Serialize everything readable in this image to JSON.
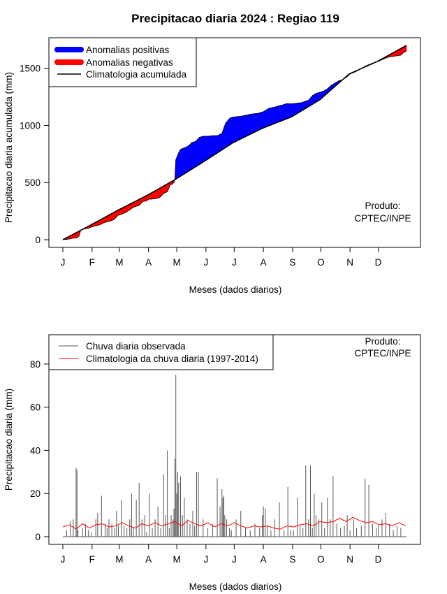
{
  "figure": {
    "title": "Precipitacao diaria 2024 : Regiao 119",
    "credit_line1": "Produto:",
    "credit_line2": "CPTEC/INPE"
  },
  "chart_data": [
    {
      "type": "area",
      "title": "Precipitacao diaria 2024 : Regiao 119",
      "xlabel": "Meses (dados diarios)",
      "ylabel": "Precipitacao diaria acumulada (mm)",
      "x_unit": "day of year",
      "xlim": [
        1,
        366
      ],
      "ylim": [
        0,
        1700
      ],
      "y_ticks": [
        0,
        500,
        1000,
        1500
      ],
      "month_tick_labels": [
        "J",
        "F",
        "M",
        "A",
        "M",
        "J",
        "J",
        "A",
        "S",
        "O",
        "N",
        "D"
      ],
      "month_tick_days": [
        1,
        32,
        61,
        92,
        122,
        153,
        183,
        214,
        245,
        275,
        306,
        336
      ],
      "grid": false,
      "legend_position": "top-left",
      "legend": [
        "Anomalias positivas",
        "Anomalias negativas",
        "Climatologia acumulada"
      ],
      "colors": {
        "positive": "#0000ff",
        "negative": "#ff0000",
        "climatology": "#000000"
      },
      "climatology": {
        "x": [
          1,
          31,
          60,
          91,
          121,
          152,
          182,
          213,
          244,
          274,
          305,
          335,
          366
        ],
        "y": [
          0,
          130,
          260,
          390,
          530,
          690,
          850,
          975,
          1075,
          1225,
          1450,
          1560,
          1700
        ]
      },
      "observed": {
        "x": [
          1,
          8,
          12,
          15,
          18,
          20,
          24,
          28,
          31,
          35,
          40,
          45,
          50,
          55,
          58,
          60,
          64,
          68,
          72,
          75,
          78,
          82,
          86,
          90,
          92,
          95,
          100,
          104,
          108,
          112,
          115,
          117,
          119,
          120,
          121,
          124,
          126,
          129,
          132,
          135,
          138,
          142,
          146,
          150,
          155,
          160,
          165,
          170,
          173,
          174,
          176,
          177,
          178,
          180,
          184,
          190,
          196,
          202,
          208,
          214,
          220,
          226,
          230,
          235,
          238,
          242,
          246,
          250,
          255,
          258,
          262,
          266,
          270,
          274,
          278,
          282,
          286,
          290,
          294,
          298,
          302,
          306,
          312,
          318,
          324,
          330,
          336,
          340,
          344,
          348,
          352,
          356,
          360,
          363,
          366
        ],
        "y": [
          0,
          6,
          14,
          14,
          30,
          82,
          95,
          100,
          110,
          120,
          130,
          150,
          160,
          175,
          200,
          215,
          225,
          240,
          260,
          280,
          290,
          300,
          335,
          340,
          355,
          355,
          360,
          370,
          405,
          420,
          480,
          485,
          500,
          530,
          700,
          760,
          790,
          800,
          810,
          825,
          850,
          860,
          895,
          905,
          905,
          910,
          910,
          930,
          1000,
          1020,
          1040,
          1050,
          1060,
          1070,
          1075,
          1080,
          1090,
          1100,
          1105,
          1120,
          1150,
          1160,
          1170,
          1180,
          1190,
          1190,
          1190,
          1195,
          1200,
          1210,
          1220,
          1260,
          1280,
          1290,
          1300,
          1320,
          1350,
          1370,
          1390,
          1400,
          1420,
          1450,
          1470,
          1500,
          1525,
          1545,
          1560,
          1575,
          1590,
          1600,
          1605,
          1610,
          1615,
          1640,
          1650
        ]
      }
    },
    {
      "type": "line",
      "xlabel": "Meses (dados diarios)",
      "ylabel": "Precipitacao diaria (mm)",
      "x_unit": "day of year",
      "xlim": [
        1,
        366
      ],
      "ylim": [
        0,
        90
      ],
      "y_ticks": [
        0,
        20,
        40,
        60,
        80
      ],
      "month_tick_labels": [
        "J",
        "F",
        "M",
        "A",
        "M",
        "J",
        "J",
        "A",
        "S",
        "O",
        "N",
        "D"
      ],
      "month_tick_days": [
        1,
        32,
        61,
        92,
        122,
        153,
        183,
        214,
        245,
        275,
        306,
        336
      ],
      "grid": false,
      "legend_position": "top-left",
      "colors": {
        "observed": "#555555",
        "climatology": "#ff0000"
      },
      "series": [
        {
          "name": "Chuva diaria observada",
          "style": "vertical-bars",
          "x": [
            5,
            9,
            12,
            15,
            16,
            17,
            22,
            25,
            28,
            31,
            36,
            38,
            42,
            46,
            48,
            50,
            53,
            56,
            58,
            60,
            63,
            66,
            69,
            72,
            74,
            76,
            79,
            82,
            85,
            88,
            90,
            93,
            96,
            99,
            102,
            105,
            108,
            110,
            112,
            114,
            116,
            118,
            119,
            120,
            121,
            122,
            123,
            124,
            126,
            128,
            130,
            133,
            136,
            139,
            141,
            143,
            145,
            150,
            155,
            160,
            165,
            168,
            170,
            171,
            172,
            173,
            175,
            178,
            180,
            185,
            190,
            195,
            200,
            205,
            210,
            213,
            214,
            216,
            218,
            222,
            226,
            231,
            236,
            240,
            243,
            246,
            250,
            253,
            256,
            259,
            262,
            264,
            266,
            268,
            270,
            273,
            276,
            279,
            282,
            285,
            288,
            292,
            296,
            300,
            303,
            306,
            310,
            313,
            318,
            322,
            326,
            330,
            334,
            336,
            340,
            344,
            348,
            352,
            356,
            360
          ],
          "y": [
            3,
            7,
            8,
            32,
            31,
            3,
            4,
            6,
            3,
            2,
            8,
            11,
            19,
            6,
            4,
            8,
            6,
            4,
            12,
            5,
            17,
            5,
            4,
            8,
            20,
            4,
            17,
            25,
            8,
            10,
            2,
            20,
            4,
            8,
            14,
            4,
            29,
            10,
            40,
            4,
            10,
            8,
            13,
            36,
            75,
            20,
            30,
            25,
            28,
            10,
            18,
            8,
            6,
            12,
            5,
            30,
            30,
            8,
            4,
            6,
            27,
            14,
            22,
            18,
            19,
            10,
            8,
            4,
            3,
            8,
            12,
            4,
            3,
            6,
            4,
            10,
            14,
            13,
            5,
            3,
            8,
            16,
            3,
            23,
            3,
            3,
            18,
            5,
            4,
            33,
            8,
            33,
            4,
            20,
            10,
            8,
            16,
            4,
            18,
            8,
            28,
            6,
            4,
            5,
            10,
            3,
            8,
            4,
            5,
            27,
            24,
            6,
            4,
            5,
            8,
            11,
            6,
            3,
            5,
            4
          ]
        },
        {
          "name": "Climatologia da chuva diaria (1997-2014)",
          "style": "line",
          "x": [
            1,
            8,
            15,
            22,
            29,
            36,
            43,
            50,
            57,
            64,
            71,
            78,
            85,
            92,
            99,
            106,
            113,
            120,
            127,
            134,
            141,
            148,
            155,
            162,
            169,
            176,
            183,
            190,
            197,
            204,
            211,
            218,
            225,
            232,
            239,
            246,
            253,
            260,
            267,
            274,
            281,
            288,
            295,
            302,
            309,
            316,
            323,
            330,
            337,
            344,
            351,
            358,
            365
          ],
          "y": [
            4.5,
            5.5,
            3.5,
            6,
            4,
            5.5,
            6,
            4.5,
            5,
            6.5,
            5,
            4,
            6,
            5,
            6.5,
            5,
            6,
            7,
            5,
            7.5,
            6,
            5,
            6.5,
            4.5,
            6,
            5,
            6.5,
            5,
            4,
            5,
            4.5,
            5,
            4,
            3.5,
            5,
            4.5,
            5.5,
            6,
            5,
            7,
            6.5,
            7,
            8.5,
            7,
            9,
            7.5,
            6.5,
            7,
            5.5,
            6,
            5,
            6.5,
            5
          ]
        }
      ]
    }
  ]
}
